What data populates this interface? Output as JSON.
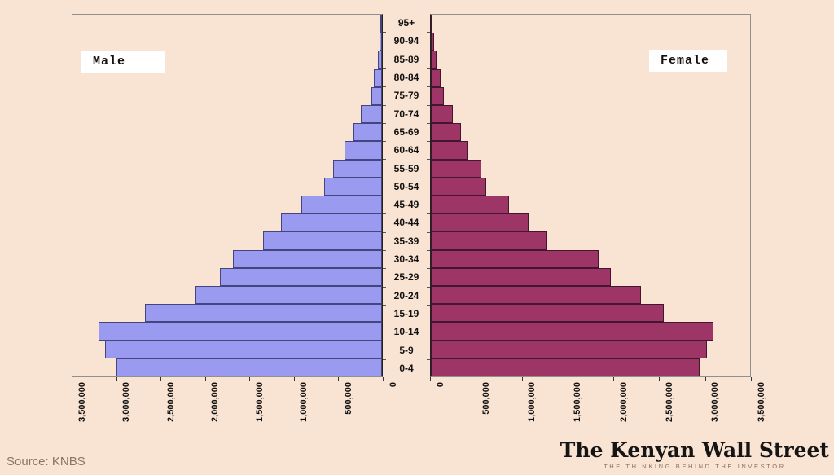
{
  "page": {
    "background_color": "#f9e3d2",
    "source_note": "Source: KNBS",
    "logo": {
      "title": "The Kenyan Wall Street",
      "tagline": "THE THINKING BEHIND THE INVESTOR"
    }
  },
  "chart_data": {
    "type": "bar",
    "subtype": "population_pyramid",
    "title": "",
    "categories_top_to_bottom": [
      "95+",
      "90-94",
      "85-89",
      "80-84",
      "75-79",
      "70-74",
      "65-69",
      "60-64",
      "55-59",
      "50-54",
      "45-49",
      "40-44",
      "35-39",
      "30-34",
      "25-29",
      "20-24",
      "15-19",
      "10-14",
      "5-9",
      "0-4"
    ],
    "series": [
      {
        "name": "Male",
        "side": "left",
        "color": "#9a9af0",
        "border_color": "#45457e",
        "values_top_to_bottom": [
          10000,
          25000,
          45000,
          90000,
          120000,
          240000,
          320000,
          425000,
          550000,
          650000,
          910000,
          1140000,
          1345000,
          1690000,
          1835000,
          2105000,
          2680000,
          3205000,
          3130000,
          3000000
        ]
      },
      {
        "name": "Female",
        "side": "right",
        "color": "#9d3567",
        "border_color": "#43152f",
        "values_top_to_bottom": [
          20000,
          35000,
          60000,
          105000,
          145000,
          245000,
          330000,
          415000,
          550000,
          610000,
          855000,
          1070000,
          1280000,
          1840000,
          1975000,
          2300000,
          2555000,
          3100000,
          3030000,
          2945000
        ]
      }
    ],
    "x_axis": {
      "min": 0,
      "max": 3500000,
      "tick_interval": 500000,
      "tick_labels": [
        "0",
        "500,000",
        "1,000,000",
        "1,500,000",
        "2,000,000",
        "2,500,000",
        "3,000,000",
        "3,500,000"
      ],
      "male_axis_reversed": true
    },
    "grid": false,
    "legend_position": "inside-top"
  }
}
